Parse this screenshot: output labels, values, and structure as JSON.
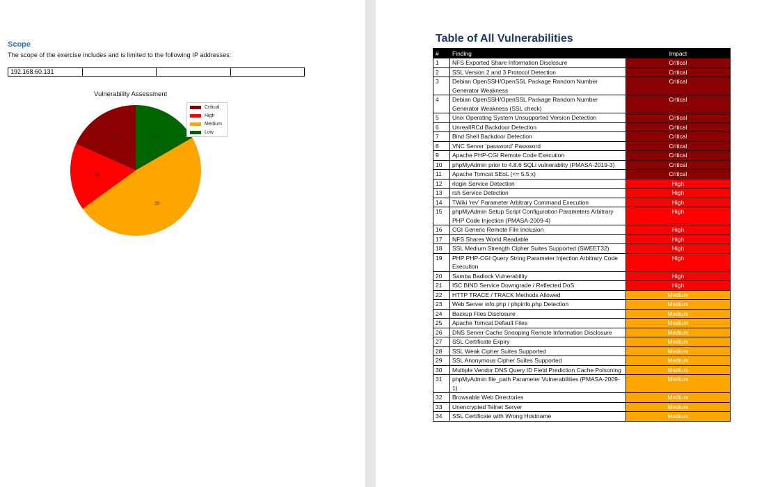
{
  "scope": {
    "title": "Scope",
    "text": "The scope of the exercise includes and is limited to the following IP addresses:",
    "ip_addresses": [
      "192.168.60.131",
      "",
      "",
      ""
    ]
  },
  "chart_data": {
    "type": "pie",
    "title": "Vulnerability Assessment",
    "categories": [
      "Critical",
      "High",
      "Medium",
      "Low"
    ],
    "values": [
      11,
      10,
      29,
      10
    ],
    "colors": [
      "#8b0000",
      "#ff0000",
      "#ffa500",
      "#006400"
    ],
    "legend_position": "top-right"
  },
  "vuln_table": {
    "title": "Table of All Vulnerabilities",
    "headers": {
      "num": "#",
      "finding": "Finding",
      "impact": "Impact"
    },
    "rows": [
      {
        "num": "1",
        "finding": "NFS Exported Share Information Disclosure",
        "impact": "Critical"
      },
      {
        "num": "2",
        "finding": "SSL Version 2 and 3 Protocol Detection",
        "impact": "Critical"
      },
      {
        "num": "3",
        "finding": "Debian OpenSSH/OpenSSL Package Random Number Generator Weakness",
        "impact": "Critical"
      },
      {
        "num": "4",
        "finding": "Debian OpenSSH/OpenSSL Package Random Number Generator Weakness (SSL check)",
        "impact": "Critical"
      },
      {
        "num": "5",
        "finding": "Unix Operating System Unsupported Version Detection",
        "impact": "Critical"
      },
      {
        "num": "6",
        "finding": "UnrealIRCd Backdoor Detection",
        "impact": "Critical"
      },
      {
        "num": "7",
        "finding": "Bind Shell Backdoor Detection",
        "impact": "Critical"
      },
      {
        "num": "8",
        "finding": "VNC Server 'password' Password",
        "impact": "Critical"
      },
      {
        "num": "9",
        "finding": "Apache PHP-CGI Remote Code Execution",
        "impact": "Critical"
      },
      {
        "num": "10",
        "finding": "phpMyAdmin prior to 4.8.6 SQLi vulnerablity (PMASA-2019-3)",
        "impact": "Critical"
      },
      {
        "num": "11",
        "finding": "Apache Tomcat SEoL (<= 5.5.x)",
        "impact": "Critical"
      },
      {
        "num": "12",
        "finding": "rlogin Service Detection",
        "impact": "High"
      },
      {
        "num": "13",
        "finding": "rsh Service Detection",
        "impact": "High"
      },
      {
        "num": "14",
        "finding": "TWiki 'rev' Parameter Arbitrary Command Execution",
        "impact": "High"
      },
      {
        "num": "15",
        "finding": "phpMyAdmin Setup Script Configuration Parameters Arbitrary PHP Code Injection (PMASA-2009-4)",
        "impact": "High"
      },
      {
        "num": "16",
        "finding": "CGI Generic Remote File Inclusion",
        "impact": "High"
      },
      {
        "num": "17",
        "finding": "NFS Shares World Readable",
        "impact": "High"
      },
      {
        "num": "18",
        "finding": "SSL Medium Strength Cipher Suites Supported (SWEET32)",
        "impact": "High"
      },
      {
        "num": "19",
        "finding": "PHP PHP-CGI Query String Parameter Injection Arbitrary Code Execution",
        "impact": "High"
      },
      {
        "num": "20",
        "finding": "Samba Badlock Vulnerability",
        "impact": "High"
      },
      {
        "num": "21",
        "finding": "ISC BIND Service Downgrade / Reflected DoS",
        "impact": "High"
      },
      {
        "num": "22",
        "finding": "HTTP TRACE / TRACK Methods Allowed",
        "impact": "Medium"
      },
      {
        "num": "23",
        "finding": "Web Server info.php / phpinfo.php Detection",
        "impact": "Medium"
      },
      {
        "num": "24",
        "finding": "Backup Files Disclosure",
        "impact": "Medium"
      },
      {
        "num": "25",
        "finding": "Apache Tomcat Default Files",
        "impact": "Medium"
      },
      {
        "num": "26",
        "finding": "DNS Server Cache Snooping Remote Information Disclosure",
        "impact": "Medium"
      },
      {
        "num": "27",
        "finding": "SSL Certificate Expiry",
        "impact": "Medium"
      },
      {
        "num": "28",
        "finding": "SSL Weak Cipher Suites Supported",
        "impact": "Medium"
      },
      {
        "num": "29",
        "finding": "SSL Anonymous Cipher Suites Supported",
        "impact": "Medium"
      },
      {
        "num": "30",
        "finding": "Multiple Vendor DNS Query ID Field Prediction Cache Poisoning",
        "impact": "Medium"
      },
      {
        "num": "31",
        "finding": "phpMyAdmin file_path Parameter Vulnerabilities (PMASA-2009-1)",
        "impact": "Medium"
      },
      {
        "num": "32",
        "finding": "Browsable Web Directories",
        "impact": "Medium"
      },
      {
        "num": "33",
        "finding": "Unencrypted Telnet Server",
        "impact": "Medium"
      },
      {
        "num": "34",
        "finding": "SSL Certificate with Wrong Hostname",
        "impact": "Medium"
      }
    ]
  }
}
